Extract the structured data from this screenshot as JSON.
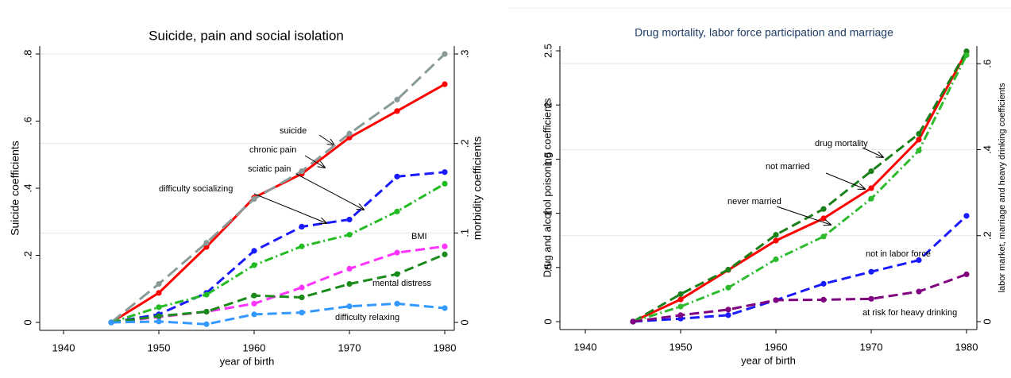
{
  "chart_data": [
    {
      "type": "line",
      "title": "Suicide, pain and social isolation",
      "xlabel": "year of birth",
      "ylabel": "Suicide coefficients",
      "y2label": "morbidity coefficients",
      "x": [
        1945,
        1950,
        1955,
        1960,
        1965,
        1970,
        1975,
        1980
      ],
      "xlim": [
        1940,
        1980
      ],
      "xticks": [
        1940,
        1950,
        1960,
        1970,
        1980
      ],
      "ylim": [
        0,
        0.8
      ],
      "yticks": [
        0,
        {
          "value": 0.2,
          "label": ".2"
        },
        {
          "value": 0.4,
          "label": ".4"
        },
        {
          "value": 0.6,
          "label": ".6"
        },
        {
          "value": 0.8,
          "label": ".8"
        }
      ],
      "y2lim": [
        0,
        0.3
      ],
      "y2ticks": [
        0,
        {
          "value": 0.1,
          "label": ".1"
        },
        {
          "value": 0.2,
          "label": ".2"
        },
        {
          "value": 0.3,
          "label": ".3"
        }
      ],
      "grid": "y2",
      "series": [
        {
          "name": "suicide",
          "color": "#ff0000",
          "style": "solid",
          "axis": "y",
          "values": [
            0,
            0.088,
            0.225,
            0.372,
            0.443,
            0.551,
            0.63,
            0.71
          ]
        },
        {
          "name": "chronic pain",
          "color": "#8a9a99",
          "style": "longdash",
          "axis": "y2",
          "values": [
            0,
            0.043,
            0.089,
            0.138,
            0.169,
            0.211,
            0.249,
            0.3
          ]
        },
        {
          "name": "sciatic pain",
          "color": "#1a1aff",
          "style": "dash",
          "axis": "y2",
          "values": [
            0,
            0.009,
            0.033,
            0.08,
            0.107,
            0.115,
            0.163,
            0.168
          ]
        },
        {
          "name": "difficulty socializing",
          "color": "#22bb22",
          "style": "dashdot",
          "axis": "y2",
          "values": [
            0,
            0.017,
            0.031,
            0.064,
            0.085,
            0.098,
            0.124,
            0.155
          ]
        },
        {
          "name": "BMI",
          "color": "#ff33ff",
          "style": "dash",
          "axis": "y2",
          "values": [
            0,
            0.006,
            0.012,
            0.021,
            0.039,
            0.06,
            0.078,
            0.085
          ]
        },
        {
          "name": "mental distress",
          "color": "#1a8a1a",
          "style": "dash",
          "axis": "y2",
          "values": [
            0,
            0.007,
            0.012,
            0.03,
            0.028,
            0.043,
            0.054,
            0.076
          ]
        },
        {
          "name": "difficulty relaxing",
          "color": "#3399ff",
          "style": "dash",
          "axis": "y2",
          "values": [
            0,
            0.001,
            -0.002,
            0.009,
            0.011,
            0.018,
            0.021,
            0.016
          ]
        }
      ]
    },
    {
      "type": "line",
      "title": "Drug mortality, labor force participation and marriage",
      "xlabel": "year of birth",
      "ylabel": "Drug and alcohol poisoning coefficients",
      "y2label": "labor market, marriage and heavy drinking coefficients",
      "x": [
        1945,
        1950,
        1955,
        1960,
        1965,
        1970,
        1975,
        1980
      ],
      "xlim": [
        1940,
        1980
      ],
      "xticks": [
        1940,
        1950,
        1960,
        1970,
        1980
      ],
      "ylim": [
        0,
        2.5
      ],
      "yticks": [
        0,
        {
          "value": 0.5,
          "label": ".5"
        },
        1,
        1.5,
        2,
        2.5
      ],
      "y2lim": [
        0,
        0.63
      ],
      "y2ticks": [
        0,
        {
          "value": 0.2,
          "label": ".2"
        },
        {
          "value": 0.4,
          "label": ".4"
        },
        {
          "value": 0.6,
          "label": ".6"
        }
      ],
      "grid": "y2",
      "series": [
        {
          "name": "drug mortality",
          "color": "#ff0000",
          "style": "solid",
          "axis": "y",
          "values": [
            0,
            0.205,
            0.477,
            0.748,
            0.953,
            1.232,
            1.68,
            2.493
          ]
        },
        {
          "name": "not married",
          "color": "#1a801a",
          "style": "dash",
          "axis": "y2",
          "values": [
            0,
            0.064,
            0.121,
            0.202,
            0.262,
            0.35,
            0.437,
            0.629
          ]
        },
        {
          "name": "never married",
          "color": "#2dbb2d",
          "style": "dashdot",
          "axis": "y2",
          "values": [
            0,
            0.035,
            0.079,
            0.145,
            0.198,
            0.286,
            0.398,
            0.62
          ]
        },
        {
          "name": "not in labor force",
          "color": "#1a1aff",
          "style": "dash",
          "axis": "y2",
          "values": [
            0,
            0.007,
            0.015,
            0.05,
            0.088,
            0.116,
            0.143,
            0.246
          ]
        },
        {
          "name": "at risk for heavy drinking",
          "color": "#800080",
          "style": "dash",
          "axis": "y2",
          "values": [
            0,
            0.015,
            0.028,
            0.05,
            0.051,
            0.053,
            0.07,
            0.11
          ]
        }
      ]
    }
  ]
}
